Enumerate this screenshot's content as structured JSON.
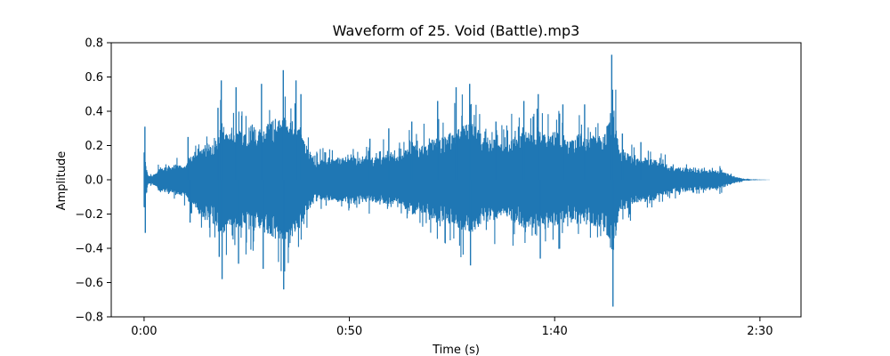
{
  "chart_data": {
    "type": "line",
    "title": "Waveform of 25. Void (Battle).mp3",
    "xlabel": "Time (s)",
    "ylabel": "Amplitude",
    "xlim": [
      -8,
      160
    ],
    "ylim": [
      -0.8,
      0.8
    ],
    "x_ticks": [
      {
        "value": 0,
        "label": "0:00"
      },
      {
        "value": 50,
        "label": "0:50"
      },
      {
        "value": 100,
        "label": "1:40"
      },
      {
        "value": 150,
        "label": "2:30"
      }
    ],
    "y_ticks": [
      {
        "value": -0.8,
        "label": "−0.8"
      },
      {
        "value": -0.6,
        "label": "−0.6"
      },
      {
        "value": -0.4,
        "label": "−0.4"
      },
      {
        "value": -0.2,
        "label": "−0.2"
      },
      {
        "value": 0.0,
        "label": "0.0"
      },
      {
        "value": 0.2,
        "label": "0.2"
      },
      {
        "value": 0.4,
        "label": "0.4"
      },
      {
        "value": 0.6,
        "label": "0.6"
      },
      {
        "value": 0.8,
        "label": "0.8"
      }
    ],
    "grid": false,
    "series": [
      {
        "color": "#1f77b4",
        "envelope": {
          "x": [
            0,
            0.5,
            1,
            2,
            3,
            4,
            6,
            8,
            10,
            11,
            12,
            14,
            16,
            18,
            19,
            20,
            22,
            24,
            26,
            28,
            30,
            32,
            34,
            36,
            38,
            40,
            42,
            44,
            46,
            48,
            50,
            52,
            54,
            56,
            58,
            60,
            62,
            64,
            66,
            68,
            70,
            72,
            74,
            76,
            78,
            80,
            82,
            84,
            86,
            88,
            90,
            92,
            94,
            96,
            98,
            100,
            102,
            104,
            106,
            108,
            110,
            112,
            114,
            116,
            118,
            120,
            122,
            124,
            126,
            128,
            130,
            132,
            134,
            136,
            138,
            140,
            142,
            144,
            146,
            148,
            150,
            151,
            152,
            153
          ],
          "upper": [
            0.31,
            0.12,
            0.05,
            0.04,
            0.08,
            0.12,
            0.14,
            0.15,
            0.14,
            0.22,
            0.25,
            0.3,
            0.4,
            0.42,
            0.58,
            0.45,
            0.48,
            0.52,
            0.55,
            0.5,
            0.54,
            0.6,
            0.64,
            0.58,
            0.5,
            0.3,
            0.2,
            0.2,
            0.21,
            0.22,
            0.26,
            0.22,
            0.24,
            0.22,
            0.24,
            0.28,
            0.24,
            0.3,
            0.36,
            0.34,
            0.44,
            0.4,
            0.46,
            0.48,
            0.54,
            0.55,
            0.46,
            0.42,
            0.38,
            0.34,
            0.42,
            0.46,
            0.48,
            0.5,
            0.46,
            0.48,
            0.44,
            0.38,
            0.46,
            0.4,
            0.44,
            0.42,
            0.73,
            0.28,
            0.26,
            0.2,
            0.22,
            0.2,
            0.18,
            0.14,
            0.12,
            0.12,
            0.1,
            0.1,
            0.1,
            0.09,
            0.06,
            0.03,
            0.01,
            0.005,
            0.003,
            0.002,
            0.001,
            0.0
          ],
          "lower": [
            -0.31,
            -0.12,
            -0.05,
            -0.04,
            -0.08,
            -0.12,
            -0.14,
            -0.15,
            -0.16,
            -0.22,
            -0.25,
            -0.38,
            -0.42,
            -0.45,
            -0.58,
            -0.45,
            -0.46,
            -0.5,
            -0.52,
            -0.48,
            -0.52,
            -0.58,
            -0.64,
            -0.56,
            -0.48,
            -0.3,
            -0.2,
            -0.2,
            -0.21,
            -0.22,
            -0.24,
            -0.22,
            -0.22,
            -0.22,
            -0.24,
            -0.26,
            -0.24,
            -0.3,
            -0.36,
            -0.34,
            -0.42,
            -0.4,
            -0.44,
            -0.46,
            -0.5,
            -0.51,
            -0.44,
            -0.42,
            -0.38,
            -0.34,
            -0.42,
            -0.46,
            -0.48,
            -0.48,
            -0.46,
            -0.46,
            -0.42,
            -0.38,
            -0.46,
            -0.4,
            -0.48,
            -0.44,
            -0.74,
            -0.3,
            -0.28,
            -0.22,
            -0.22,
            -0.2,
            -0.16,
            -0.14,
            -0.12,
            -0.12,
            -0.1,
            -0.1,
            -0.1,
            -0.09,
            -0.06,
            -0.03,
            -0.01,
            -0.005,
            -0.003,
            -0.002,
            -0.001,
            0.0
          ]
        },
        "spikes": [
          {
            "x": 0.2,
            "value": 0.31
          },
          {
            "x": 0.3,
            "value": -0.31
          },
          {
            "x": 10.7,
            "value": 0.25
          },
          {
            "x": 11.2,
            "value": -0.25
          },
          {
            "x": 18.0,
            "value": 0.42
          },
          {
            "x": 18.3,
            "value": -0.45
          },
          {
            "x": 18.8,
            "value": 0.58
          },
          {
            "x": 19.0,
            "value": -0.58
          },
          {
            "x": 22.4,
            "value": 0.54
          },
          {
            "x": 23.0,
            "value": -0.49
          },
          {
            "x": 28.6,
            "value": 0.56
          },
          {
            "x": 29.0,
            "value": -0.52
          },
          {
            "x": 33.9,
            "value": 0.64
          },
          {
            "x": 34.0,
            "value": -0.64
          },
          {
            "x": 37.0,
            "value": 0.58
          },
          {
            "x": 38.2,
            "value": 0.5
          },
          {
            "x": 55.0,
            "value": 0.24
          },
          {
            "x": 59.6,
            "value": 0.3
          },
          {
            "x": 65.2,
            "value": 0.34
          },
          {
            "x": 71.5,
            "value": 0.46
          },
          {
            "x": 76.0,
            "value": 0.54
          },
          {
            "x": 79.3,
            "value": 0.56
          },
          {
            "x": 79.5,
            "value": -0.5
          },
          {
            "x": 85.7,
            "value": 0.34
          },
          {
            "x": 92.5,
            "value": 0.46
          },
          {
            "x": 96.0,
            "value": 0.5
          },
          {
            "x": 96.5,
            "value": -0.46
          },
          {
            "x": 102.0,
            "value": 0.44
          },
          {
            "x": 107.3,
            "value": 0.44
          },
          {
            "x": 113.9,
            "value": 0.73
          },
          {
            "x": 114.2,
            "value": -0.74
          },
          {
            "x": 116.5,
            "value": 0.27
          },
          {
            "x": 121.0,
            "value": 0.22
          }
        ]
      }
    ]
  }
}
